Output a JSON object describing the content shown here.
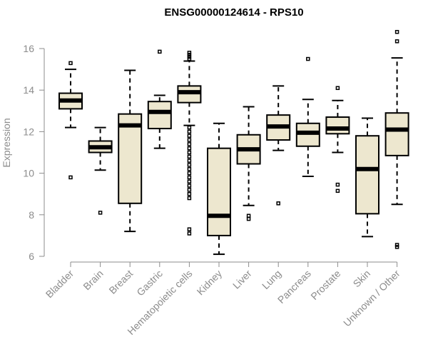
{
  "chart_data": {
    "type": "box",
    "title": "ENSG00000124614 - RPS10",
    "xlabel": "",
    "ylabel": "Expression",
    "ylim": [
      6,
      16.8
    ],
    "yticks": [
      6,
      8,
      10,
      12,
      14,
      16
    ],
    "box_fill": "#ede7cf",
    "box_stroke": "#000000",
    "axis_color": "#8c8c8c",
    "categories": [
      "Bladder",
      "Brain",
      "Breast",
      "Gastric",
      "Hematopoietic cells",
      "Kidney",
      "Liver",
      "Lung",
      "Pancreas",
      "Prostate",
      "Skin",
      "Unknown / Other"
    ],
    "boxes": [
      {
        "category": "Bladder",
        "whisker_low": 12.2,
        "q1": 13.1,
        "median": 13.5,
        "q3": 13.85,
        "whisker_high": 15.0,
        "outliers": [
          15.3,
          9.8
        ]
      },
      {
        "category": "Brain",
        "whisker_low": 10.15,
        "q1": 11.0,
        "median": 11.25,
        "q3": 11.55,
        "whisker_high": 12.2,
        "outliers": [
          8.1
        ]
      },
      {
        "category": "Breast",
        "whisker_low": 7.2,
        "q1": 8.55,
        "median": 12.3,
        "q3": 12.85,
        "whisker_high": 14.95,
        "outliers": []
      },
      {
        "category": "Gastric",
        "whisker_low": 11.2,
        "q1": 12.15,
        "median": 12.95,
        "q3": 13.45,
        "whisker_high": 13.75,
        "outliers": [
          15.85
        ]
      },
      {
        "category": "Hematopoietic cells",
        "whisker_low": 12.3,
        "q1": 13.4,
        "median": 13.9,
        "q3": 14.2,
        "whisker_high": 15.4,
        "outliers": [
          15.5,
          15.6,
          15.7,
          15.8,
          12.2,
          12.0,
          11.8,
          11.6,
          11.4,
          11.2,
          11.0,
          10.8,
          10.6,
          10.4,
          10.2,
          10.0,
          9.8,
          9.6,
          9.4,
          9.2,
          9.0,
          8.8,
          7.3,
          7.1
        ]
      },
      {
        "category": "Kidney",
        "whisker_low": 6.1,
        "q1": 7.0,
        "median": 7.95,
        "q3": 11.2,
        "whisker_high": 12.4,
        "outliers": []
      },
      {
        "category": "Liver",
        "whisker_low": 8.45,
        "q1": 10.45,
        "median": 11.15,
        "q3": 11.85,
        "whisker_high": 13.2,
        "outliers": [
          7.95,
          7.8
        ]
      },
      {
        "category": "Lung",
        "whisker_low": 11.1,
        "q1": 11.6,
        "median": 12.25,
        "q3": 12.8,
        "whisker_high": 14.2,
        "outliers": [
          8.55
        ]
      },
      {
        "category": "Pancreas",
        "whisker_low": 9.85,
        "q1": 11.3,
        "median": 11.95,
        "q3": 12.4,
        "whisker_high": 13.55,
        "outliers": [
          15.5
        ]
      },
      {
        "category": "Prostate",
        "whisker_low": 11.0,
        "q1": 11.9,
        "median": 12.15,
        "q3": 12.7,
        "whisker_high": 13.5,
        "outliers": [
          14.1,
          9.45,
          9.15
        ]
      },
      {
        "category": "Skin",
        "whisker_low": 6.95,
        "q1": 8.05,
        "median": 10.2,
        "q3": 11.8,
        "whisker_high": 12.65,
        "outliers": []
      },
      {
        "category": "Unknown / Other",
        "whisker_low": 8.5,
        "q1": 10.85,
        "median": 12.1,
        "q3": 12.9,
        "whisker_high": 15.55,
        "outliers": [
          16.8,
          16.35,
          6.55,
          6.45
        ]
      }
    ]
  }
}
